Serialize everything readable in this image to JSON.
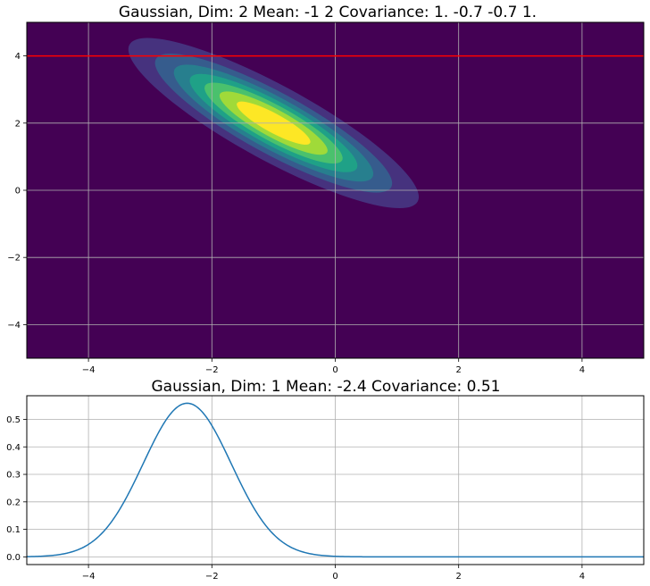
{
  "chart_data": [
    {
      "type": "heatmap",
      "subtype": "filled-contour",
      "title": "Gaussian, Dim: 2    Mean:     -1  2        Covariance:    1.  -0.7     -0.7  1.",
      "xlabel": "",
      "ylabel": "",
      "xlim": [
        -5,
        5
      ],
      "ylim": [
        -5,
        5
      ],
      "xticks": [
        -4,
        -2,
        0,
        2,
        4
      ],
      "yticks": [
        -4,
        -2,
        0,
        2,
        4
      ],
      "xtick_labels": [
        "−4",
        "−2",
        "0",
        "2",
        "4"
      ],
      "ytick_labels": [
        "−4",
        "−2",
        "0",
        "2",
        "4"
      ],
      "grid": true,
      "mean": [
        -1,
        2
      ],
      "covariance": [
        [
          1.0,
          -0.7
        ],
        [
          -0.7,
          1.0
        ]
      ],
      "contour_levels": 8,
      "colormap": "viridis",
      "contour_colors": [
        "#440154",
        "#46327e",
        "#365c8d",
        "#277f8e",
        "#1fa187",
        "#4ac16d",
        "#a0da39",
        "#fde725"
      ],
      "hline": {
        "y": 4,
        "color": "#ff0000"
      }
    },
    {
      "type": "line",
      "title": "Gaussian, Dim: 1    Mean: -2.4    Covariance:     0.51",
      "xlabel": "",
      "ylabel": "",
      "xlim": [
        -5,
        5
      ],
      "ylim": [
        -0.028,
        0.586
      ],
      "xticks": [
        -4,
        -2,
        0,
        2,
        4
      ],
      "yticks": [
        0.0,
        0.1,
        0.2,
        0.3,
        0.4,
        0.5
      ],
      "xtick_labels": [
        "−4",
        "−2",
        "0",
        "2",
        "4"
      ],
      "ytick_labels": [
        "0.0",
        "0.1",
        "0.2",
        "0.3",
        "0.4",
        "0.5"
      ],
      "grid": true,
      "line_color": "#1f77b4",
      "series": [
        {
          "x": [
            -5.0,
            -4.6,
            -4.2,
            -4.0,
            -3.8,
            -3.6,
            -3.4,
            -3.2,
            -3.0,
            -2.8,
            -2.6,
            -2.4,
            -2.2,
            -2.0,
            -1.8,
            -1.6,
            -1.4,
            -1.2,
            -1.0,
            -0.8,
            -0.6,
            -0.4,
            0.0,
            1.0,
            2.0,
            3.0,
            4.0,
            5.0
          ],
          "y": [
            0.0073,
            0.0246,
            0.0658,
            0.0999,
            0.1421,
            0.2022,
            0.2605,
            0.338,
            0.4072,
            0.4956,
            0.5353,
            0.5587,
            0.5353,
            0.496,
            0.4072,
            0.338,
            0.2605,
            0.1421,
            0.0999,
            0.0658,
            0.0238,
            0.0111,
            0.0019,
            0.0,
            0.0,
            0.0,
            0.0,
            0.0
          ]
        }
      ]
    }
  ]
}
